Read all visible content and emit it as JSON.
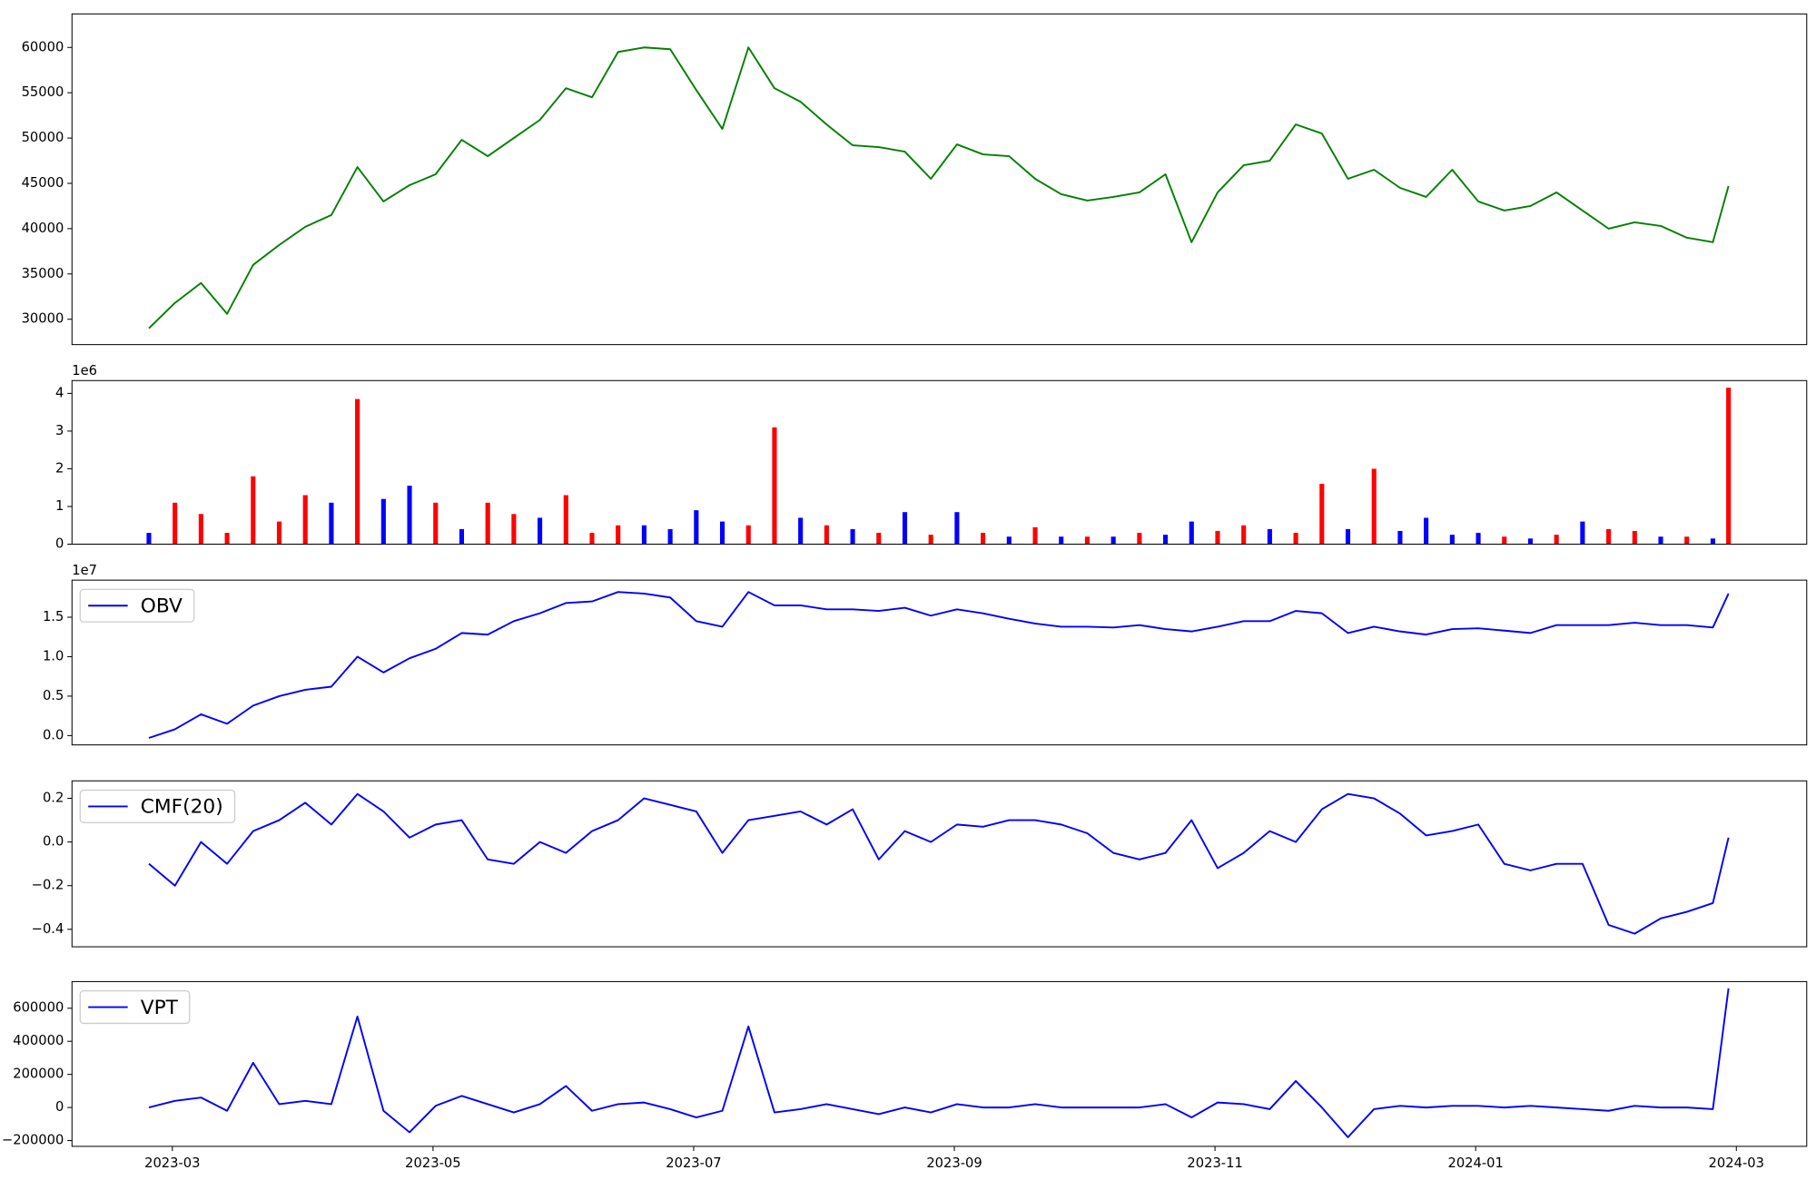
{
  "chart_data": [
    {
      "type": "line",
      "x": [
        2.82,
        3.02,
        3.22,
        3.42,
        3.62,
        3.82,
        4.02,
        4.22,
        4.42,
        4.62,
        4.82,
        5.02,
        5.22,
        5.42,
        5.62,
        5.82,
        6.02,
        6.22,
        6.42,
        6.62,
        6.82,
        7.02,
        7.22,
        7.42,
        7.62,
        7.82,
        8.02,
        8.22,
        8.42,
        8.62,
        8.82,
        9.02,
        9.22,
        9.42,
        9.62,
        9.82,
        10.02,
        10.22,
        10.42,
        10.62,
        10.82,
        11.02,
        11.22,
        11.42,
        11.62,
        11.82,
        12.02,
        12.22,
        12.42,
        12.62,
        12.82,
        13.02,
        13.22,
        13.42,
        13.62,
        13.82,
        14.02,
        14.22,
        14.42,
        14.62,
        14.82,
        14.94
      ],
      "values": [
        29000,
        31800,
        34000,
        30600,
        36000,
        38200,
        40200,
        41500,
        46800,
        43000,
        44800,
        46000,
        49800,
        48000,
        50000,
        52000,
        55500,
        54500,
        59500,
        60000,
        59800,
        55300,
        51000,
        60000,
        55500,
        54000,
        51500,
        49200,
        49000,
        48500,
        45500,
        49300,
        48200,
        48000,
        45500,
        43800,
        43100,
        43500,
        44000,
        46000,
        38500,
        44000,
        47000,
        47500,
        51500,
        50500,
        45500,
        46500,
        44500,
        43500,
        46500,
        43000,
        42000,
        42500,
        44000,
        42000,
        40000,
        40700,
        40300,
        39000,
        38500,
        44700
      ],
      "color": "#008000",
      "xlim": [
        2.23,
        15.54
      ],
      "ylim": [
        27200,
        63700
      ],
      "yticks": [
        30000,
        35000,
        40000,
        45000,
        50000,
        55000,
        60000
      ]
    },
    {
      "type": "bar",
      "x": [
        2.82,
        3.02,
        3.22,
        3.42,
        3.62,
        3.82,
        4.02,
        4.22,
        4.42,
        4.62,
        4.82,
        5.02,
        5.22,
        5.42,
        5.62,
        5.82,
        6.02,
        6.22,
        6.42,
        6.62,
        6.82,
        7.02,
        7.22,
        7.42,
        7.62,
        7.82,
        8.02,
        8.22,
        8.42,
        8.62,
        8.82,
        9.02,
        9.22,
        9.42,
        9.62,
        9.82,
        10.02,
        10.22,
        10.42,
        10.62,
        10.82,
        11.02,
        11.22,
        11.42,
        11.62,
        11.82,
        12.02,
        12.22,
        12.42,
        12.62,
        12.82,
        13.02,
        13.22,
        13.42,
        13.62,
        13.82,
        14.02,
        14.22,
        14.42,
        14.62,
        14.82,
        14.94
      ],
      "values": [
        0.3,
        1.1,
        0.8,
        0.3,
        1.8,
        0.6,
        1.3,
        1.1,
        3.85,
        1.2,
        1.55,
        1.1,
        0.4,
        1.1,
        0.8,
        0.7,
        1.3,
        0.3,
        0.5,
        0.5,
        0.4,
        0.9,
        0.6,
        0.5,
        3.1,
        0.7,
        0.5,
        0.4,
        0.3,
        0.85,
        0.25,
        0.85,
        0.3,
        0.2,
        0.45,
        0.2,
        0.2,
        0.2,
        0.3,
        0.25,
        0.6,
        0.35,
        0.5,
        0.4,
        0.3,
        1.6,
        0.4,
        2.0,
        0.35,
        0.7,
        0.25,
        0.3,
        0.2,
        0.15,
        0.25,
        0.6,
        0.4,
        0.35,
        0.2,
        0.2,
        0.15,
        4.15
      ],
      "colors": [
        "#0000ff",
        "#ff0000",
        "#ff0000",
        "#ff0000",
        "#ff0000",
        "#ff0000",
        "#ff0000",
        "#0000ff",
        "#ff0000",
        "#0000ff",
        "#0000ff",
        "#ff0000",
        "#0000ff",
        "#ff0000",
        "#ff0000",
        "#0000ff",
        "#ff0000",
        "#ff0000",
        "#ff0000",
        "#0000ff",
        "#0000ff",
        "#0000ff",
        "#0000ff",
        "#ff0000",
        "#ff0000",
        "#0000ff",
        "#ff0000",
        "#0000ff",
        "#ff0000",
        "#0000ff",
        "#ff0000",
        "#0000ff",
        "#ff0000",
        "#0000ff",
        "#ff0000",
        "#0000ff",
        "#ff0000",
        "#0000ff",
        "#ff0000",
        "#0000ff",
        "#0000ff",
        "#ff0000",
        "#ff0000",
        "#0000ff",
        "#ff0000",
        "#ff0000",
        "#0000ff",
        "#ff0000",
        "#0000ff",
        "#0000ff",
        "#0000ff",
        "#0000ff",
        "#ff0000",
        "#0000ff",
        "#ff0000",
        "#0000ff",
        "#ff0000",
        "#ff0000",
        "#0000ff",
        "#ff0000",
        "#0000ff",
        "#ff0000"
      ],
      "offset_label": "1e6",
      "xlim": [
        2.23,
        15.54
      ],
      "ylim": [
        0,
        4.34
      ],
      "yticks": [
        0,
        1,
        2,
        3,
        4
      ]
    },
    {
      "type": "line",
      "x": [
        2.82,
        3.02,
        3.22,
        3.42,
        3.62,
        3.82,
        4.02,
        4.22,
        4.42,
        4.62,
        4.82,
        5.02,
        5.22,
        5.42,
        5.62,
        5.82,
        6.02,
        6.22,
        6.42,
        6.62,
        6.82,
        7.02,
        7.22,
        7.42,
        7.62,
        7.82,
        8.02,
        8.22,
        8.42,
        8.62,
        8.82,
        9.02,
        9.22,
        9.42,
        9.62,
        9.82,
        10.02,
        10.22,
        10.42,
        10.62,
        10.82,
        11.02,
        11.22,
        11.42,
        11.62,
        11.82,
        12.02,
        12.22,
        12.42,
        12.62,
        12.82,
        13.02,
        13.22,
        13.42,
        13.62,
        13.82,
        14.02,
        14.22,
        14.42,
        14.62,
        14.82,
        14.94
      ],
      "series": [
        {
          "name": "OBV",
          "color": "#0000ff",
          "values": [
            -0.03,
            0.08,
            0.27,
            0.15,
            0.38,
            0.5,
            0.58,
            0.62,
            1.0,
            0.8,
            0.98,
            1.1,
            1.3,
            1.28,
            1.45,
            1.55,
            1.68,
            1.7,
            1.82,
            1.8,
            1.75,
            1.45,
            1.38,
            1.82,
            1.65,
            1.65,
            1.6,
            1.6,
            1.58,
            1.62,
            1.52,
            1.6,
            1.55,
            1.48,
            1.42,
            1.38,
            1.38,
            1.37,
            1.4,
            1.35,
            1.32,
            1.38,
            1.45,
            1.45,
            1.58,
            1.55,
            1.3,
            1.38,
            1.32,
            1.28,
            1.35,
            1.36,
            1.33,
            1.3,
            1.4,
            1.4,
            1.4,
            1.43,
            1.4,
            1.4,
            1.37,
            1.8
          ]
        }
      ],
      "offset_label": "1e7",
      "legend": "upper left",
      "xlim": [
        2.23,
        15.54
      ],
      "ylim": [
        -0.118,
        1.97
      ],
      "yticks": [
        {
          "value": 0,
          "label": "0.0"
        },
        {
          "value": 0.5,
          "label": "0.5"
        },
        {
          "value": 1,
          "label": "1.0"
        },
        {
          "value": 1.5,
          "label": "1.5"
        }
      ]
    },
    {
      "type": "line",
      "x": [
        2.82,
        3.02,
        3.22,
        3.42,
        3.62,
        3.82,
        4.02,
        4.22,
        4.42,
        4.62,
        4.82,
        5.02,
        5.22,
        5.42,
        5.62,
        5.82,
        6.02,
        6.22,
        6.42,
        6.62,
        6.82,
        7.02,
        7.22,
        7.42,
        7.62,
        7.82,
        8.02,
        8.22,
        8.42,
        8.62,
        8.82,
        9.02,
        9.22,
        9.42,
        9.62,
        9.82,
        10.02,
        10.22,
        10.42,
        10.62,
        10.82,
        11.02,
        11.22,
        11.42,
        11.62,
        11.82,
        12.02,
        12.22,
        12.42,
        12.62,
        12.82,
        13.02,
        13.22,
        13.42,
        13.62,
        13.82,
        14.02,
        14.22,
        14.42,
        14.62,
        14.82,
        14.94
      ],
      "series": [
        {
          "name": "CMF(20)",
          "color": "#0000ff",
          "values": [
            -0.1,
            -0.2,
            0.0,
            -0.1,
            0.05,
            0.1,
            0.18,
            0.08,
            0.22,
            0.14,
            0.02,
            0.08,
            0.1,
            -0.08,
            -0.1,
            0.0,
            -0.05,
            0.05,
            0.1,
            0.2,
            0.17,
            0.14,
            -0.05,
            0.1,
            0.12,
            0.14,
            0.08,
            0.15,
            -0.08,
            0.05,
            0.0,
            0.08,
            0.07,
            0.1,
            0.1,
            0.08,
            0.04,
            -0.05,
            -0.08,
            -0.05,
            0.1,
            -0.12,
            -0.05,
            0.05,
            0.0,
            0.15,
            0.22,
            0.2,
            0.13,
            0.03,
            0.05,
            0.08,
            -0.1,
            -0.13,
            -0.1,
            -0.1,
            -0.38,
            -0.42,
            -0.35,
            -0.32,
            -0.28,
            0.02
          ]
        }
      ],
      "legend": "upper left",
      "xlim": [
        2.23,
        15.54
      ],
      "ylim": [
        -0.48,
        0.28
      ],
      "yticks": [
        {
          "value": -0.4,
          "label": "−0.4"
        },
        {
          "value": -0.2,
          "label": "−0.2"
        },
        {
          "value": 0,
          "label": "0.0"
        },
        {
          "value": 0.2,
          "label": "0.2"
        }
      ]
    },
    {
      "type": "line",
      "x": [
        2.82,
        3.02,
        3.22,
        3.42,
        3.62,
        3.82,
        4.02,
        4.22,
        4.42,
        4.62,
        4.82,
        5.02,
        5.22,
        5.42,
        5.62,
        5.82,
        6.02,
        6.22,
        6.42,
        6.62,
        6.82,
        7.02,
        7.22,
        7.42,
        7.62,
        7.82,
        8.02,
        8.22,
        8.42,
        8.62,
        8.82,
        9.02,
        9.22,
        9.42,
        9.62,
        9.82,
        10.02,
        10.22,
        10.42,
        10.62,
        10.82,
        11.02,
        11.22,
        11.42,
        11.62,
        11.82,
        12.02,
        12.22,
        12.42,
        12.62,
        12.82,
        13.02,
        13.22,
        13.42,
        13.62,
        13.82,
        14.02,
        14.22,
        14.42,
        14.62,
        14.82,
        14.94
      ],
      "series": [
        {
          "name": "VPT",
          "color": "#0000ff",
          "values": [
            0,
            40000,
            60000,
            -20000,
            270000,
            20000,
            40000,
            20000,
            550000,
            -20000,
            -150000,
            10000,
            70000,
            20000,
            -30000,
            20000,
            130000,
            -20000,
            20000,
            30000,
            -10000,
            -60000,
            -20000,
            490000,
            -30000,
            -10000,
            20000,
            -10000,
            -40000,
            0,
            -30000,
            20000,
            0,
            0,
            20000,
            0,
            0,
            0,
            0,
            20000,
            -60000,
            30000,
            20000,
            -10000,
            160000,
            0,
            -180000,
            -10000,
            10000,
            0,
            10000,
            10000,
            0,
            10000,
            0,
            -10000,
            -20000,
            10000,
            0,
            0,
            -10000,
            720000
          ]
        }
      ],
      "legend": "upper left",
      "xlim": [
        2.23,
        15.54
      ],
      "ylim": [
        -235000,
        761000
      ],
      "yticks": [
        {
          "value": -200000,
          "label": "−200000"
        },
        0,
        200000,
        400000,
        600000
      ],
      "xticks": [
        {
          "value": 3,
          "label": "2023-03"
        },
        {
          "value": 5,
          "label": "2023-05"
        },
        {
          "value": 7,
          "label": "2023-07"
        },
        {
          "value": 9,
          "label": "2023-09"
        },
        {
          "value": 11,
          "label": "2023-11"
        },
        {
          "value": 13,
          "label": "2024-01"
        },
        {
          "value": 15,
          "label": "2024-03"
        }
      ]
    }
  ]
}
